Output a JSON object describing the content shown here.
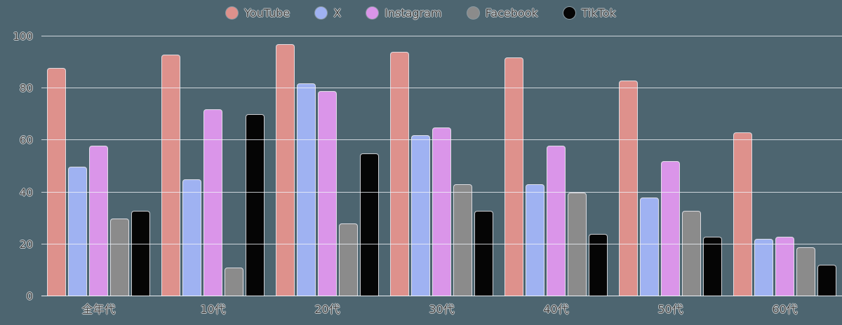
{
  "chart_data": {
    "type": "bar",
    "title": "",
    "categories": [
      "全年代",
      "10代",
      "20代",
      "30代",
      "40代",
      "50代",
      "60代"
    ],
    "series": [
      {
        "name": "YouTube",
        "color": "#de918c",
        "values": [
          88,
          93,
          97,
          94,
          92,
          83,
          63
        ]
      },
      {
        "name": "X",
        "color": "#9fb2f2",
        "values": [
          50,
          45,
          82,
          62,
          43,
          38,
          22
        ]
      },
      {
        "name": "Instagram",
        "color": "#da95e9",
        "values": [
          58,
          72,
          79,
          65,
          58,
          52,
          23
        ]
      },
      {
        "name": "Facebook",
        "color": "#8b8b8b",
        "values": [
          30,
          11,
          28,
          43,
          40,
          33,
          19
        ]
      },
      {
        "name": "TikTok",
        "color": "#050505",
        "values": [
          33,
          70,
          55,
          33,
          24,
          23,
          12
        ]
      }
    ],
    "xlabel": "",
    "ylabel": "",
    "ylim": [
      0,
      100
    ],
    "yticks": [
      0,
      20,
      40,
      60,
      80,
      100
    ],
    "grid": true,
    "legend_position": "top-center",
    "colors": {
      "background": "#4d6570",
      "gridline": "#f0f3f8",
      "tick_label": "#3f3f3f"
    }
  }
}
